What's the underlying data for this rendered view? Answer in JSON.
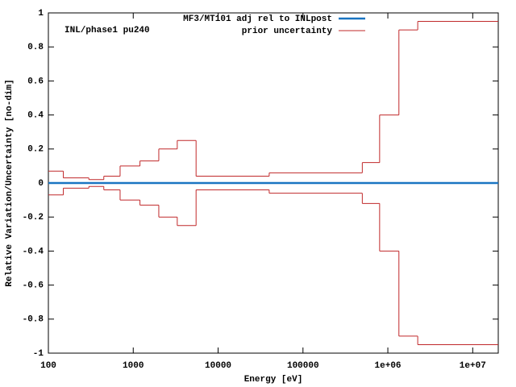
{
  "chart_data": {
    "type": "steps",
    "annotation": "INL/phase1 pu240",
    "xlabel": "Energy [eV]",
    "ylabel": "Relative Variation/Uncertainty [no-dim]",
    "log_x": true,
    "xlim": [
      100,
      20000000
    ],
    "xticks": [
      100,
      1000,
      10000,
      100000,
      {
        "value": 1000000,
        "label": "1e+06"
      },
      {
        "value": 10000000,
        "label": "1e+07"
      }
    ],
    "ylim": [
      -1,
      1
    ],
    "yticks": [
      -1,
      -0.8,
      -0.6,
      -0.4,
      -0.2,
      0,
      0.2,
      0.4,
      0.6,
      0.8,
      1
    ],
    "legend": "top-right",
    "series": [
      {
        "name": "MF3/MT101 adj rel to INLpost",
        "color": "#1a75c2",
        "style": "line",
        "x": [
          100,
          20000000
        ],
        "values": [
          0,
          0
        ]
      },
      {
        "name": "prior uncertainty",
        "color": "#c0282a",
        "style": "steps",
        "x": [
          100,
          150,
          300,
          450,
          700,
          1200,
          2000,
          3300,
          5500,
          40000,
          500000,
          800000,
          1350000,
          2250000
        ],
        "values": [
          0.07,
          0.03,
          0.02,
          0.04,
          0.1,
          0.13,
          0.2,
          0.25,
          0.04,
          0.06,
          0.12,
          0.4,
          0.9,
          0.95
        ]
      },
      {
        "color": "#c0282a",
        "style": "steps",
        "x": [
          100,
          150,
          300,
          450,
          700,
          1200,
          2000,
          3300,
          5500,
          40000,
          500000,
          800000,
          1350000,
          2250000
        ],
        "values": [
          -0.07,
          -0.03,
          -0.02,
          -0.04,
          -0.1,
          -0.13,
          -0.2,
          -0.25,
          -0.04,
          -0.06,
          -0.12,
          -0.4,
          -0.9,
          -0.95
        ]
      }
    ]
  }
}
